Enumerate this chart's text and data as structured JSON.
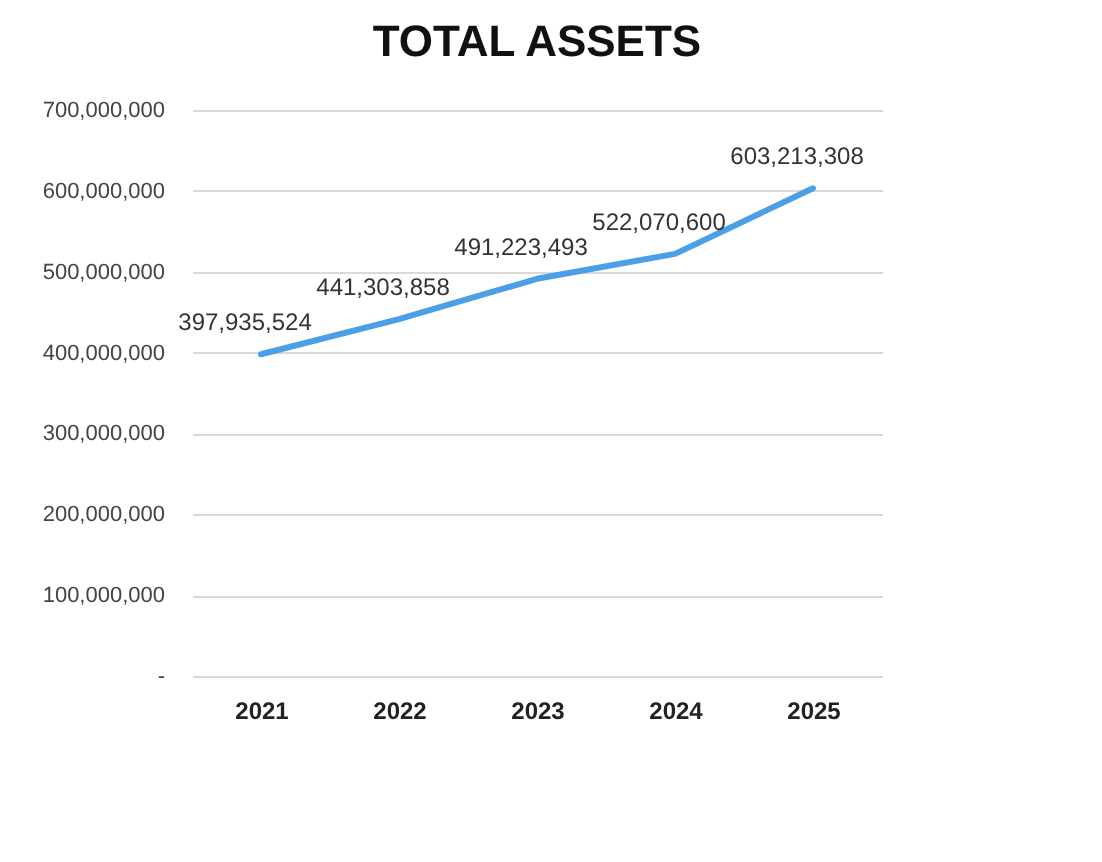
{
  "chart_data": {
    "type": "line",
    "title": "TOTAL ASSETS",
    "categories": [
      "2021",
      "2022",
      "2023",
      "2024",
      "2025"
    ],
    "series": [
      {
        "color": "#4a9fe6",
        "values": [
          397935524,
          441303858,
          491223493,
          522070600,
          603213308
        ],
        "value_labels": [
          "397,935,524",
          "441,303,858",
          "491,223,493",
          "522,070,600",
          "603,213,308"
        ]
      }
    ],
    "ylim": [
      0,
      700000000
    ],
    "yticks": [
      {
        "value": 0,
        "label": "-"
      },
      {
        "value": 100000000,
        "label": "100,000,000"
      },
      {
        "value": 200000000,
        "label": "200,000,000"
      },
      {
        "value": 300000000,
        "label": "300,000,000"
      },
      {
        "value": 400000000,
        "label": "400,000,000"
      },
      {
        "value": 500000000,
        "label": "500,000,000"
      },
      {
        "value": 600000000,
        "label": "600,000,000"
      },
      {
        "value": 700000000,
        "label": "700,000,000"
      }
    ],
    "grid": "y",
    "marker": "none",
    "line_style": "solid"
  }
}
